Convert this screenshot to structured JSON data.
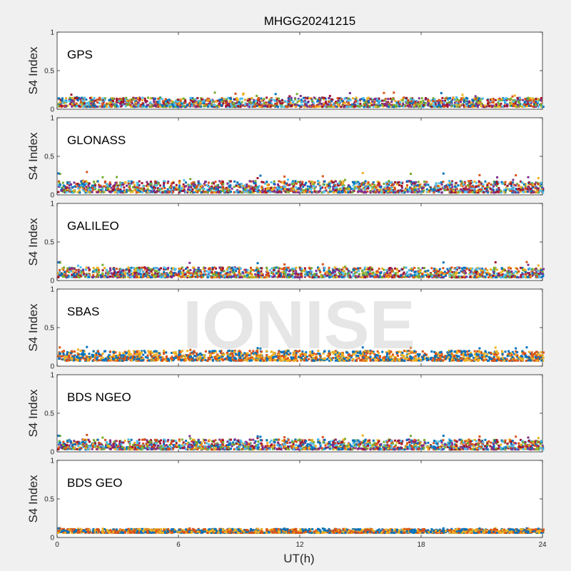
{
  "title": "MHGG20241215",
  "watermark": "IONISE",
  "xlabel": "UT(h)",
  "xticks": [
    "0",
    "6",
    "12",
    "18",
    "24"
  ],
  "chart_data": [
    {
      "type": "scatter",
      "panel_label": "GPS",
      "ylabel": "S4 Index",
      "xlim": [
        0,
        24
      ],
      "ylim": [
        0,
        1
      ],
      "yticks": [
        "0",
        "0.5",
        "1"
      ],
      "typical_range": [
        0.03,
        0.15
      ],
      "max_value": 0.22,
      "series_colors": [
        "#0072BD",
        "#D95319",
        "#EDB120",
        "#7E2F8E",
        "#77AC30",
        "#4DBEEE",
        "#A2142F"
      ]
    },
    {
      "type": "scatter",
      "panel_label": "GLONASS",
      "ylabel": "S4 Index",
      "xlim": [
        0,
        24
      ],
      "ylim": [
        0,
        1
      ],
      "yticks": [
        "0",
        "0.5",
        "1"
      ],
      "typical_range": [
        0.03,
        0.18
      ],
      "max_value": 0.3,
      "series_colors": [
        "#0072BD",
        "#D95319",
        "#EDB120",
        "#7E2F8E",
        "#77AC30",
        "#4DBEEE",
        "#A2142F"
      ]
    },
    {
      "type": "scatter",
      "panel_label": "GALILEO",
      "ylabel": "S4 Index",
      "xlim": [
        0,
        24
      ],
      "ylim": [
        0,
        1
      ],
      "yticks": [
        "0",
        "0.5",
        "1"
      ],
      "typical_range": [
        0.04,
        0.17
      ],
      "max_value": 0.25,
      "series_colors": [
        "#0072BD",
        "#D95319",
        "#EDB120",
        "#7E2F8E",
        "#77AC30",
        "#4DBEEE",
        "#A2142F"
      ]
    },
    {
      "type": "scatter",
      "panel_label": "SBAS",
      "ylabel": "S4 Index",
      "xlim": [
        0,
        24
      ],
      "ylim": [
        0,
        1
      ],
      "yticks": [
        "0",
        "0.5",
        "1"
      ],
      "typical_range": [
        0.07,
        0.2
      ],
      "max_value": 0.25,
      "series_colors": [
        "#0072BD",
        "#D95319",
        "#EDB120"
      ]
    },
    {
      "type": "scatter",
      "panel_label": "BDS NGEO",
      "ylabel": "S4 Index",
      "xlim": [
        0,
        24
      ],
      "ylim": [
        0,
        1
      ],
      "yticks": [
        "0",
        "0.5",
        "1"
      ],
      "typical_range": [
        0.03,
        0.16
      ],
      "max_value": 0.22,
      "series_colors": [
        "#0072BD",
        "#D95319",
        "#EDB120",
        "#7E2F8E",
        "#77AC30",
        "#4DBEEE",
        "#A2142F"
      ]
    },
    {
      "type": "scatter",
      "panel_label": "BDS GEO",
      "ylabel": "S4 Index",
      "xlim": [
        0,
        24
      ],
      "ylim": [
        0,
        1
      ],
      "yticks": [
        "0",
        "0.5",
        "1"
      ],
      "typical_range": [
        0.06,
        0.11
      ],
      "max_value": 0.12,
      "series_colors": [
        "#0072BD",
        "#D95319",
        "#EDB120"
      ]
    }
  ]
}
